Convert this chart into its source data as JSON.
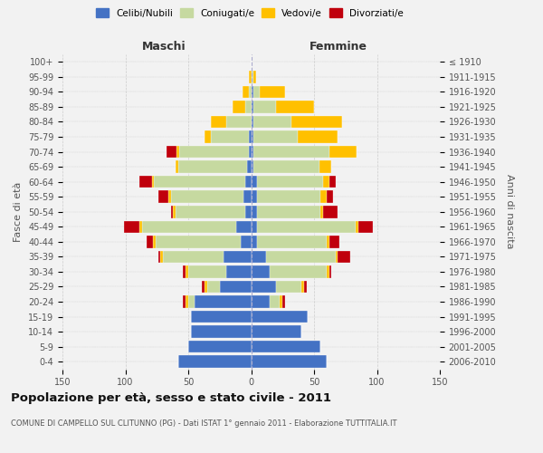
{
  "age_groups": [
    "0-4",
    "5-9",
    "10-14",
    "15-19",
    "20-24",
    "25-29",
    "30-34",
    "35-39",
    "40-44",
    "45-49",
    "50-54",
    "55-59",
    "60-64",
    "65-69",
    "70-74",
    "75-79",
    "80-84",
    "85-89",
    "90-94",
    "95-99",
    "100+"
  ],
  "birth_years": [
    "2006-2010",
    "2001-2005",
    "1996-2000",
    "1991-1995",
    "1986-1990",
    "1981-1985",
    "1976-1980",
    "1971-1975",
    "1966-1970",
    "1961-1965",
    "1956-1960",
    "1951-1955",
    "1946-1950",
    "1941-1945",
    "1936-1940",
    "1931-1935",
    "1926-1930",
    "1921-1925",
    "1916-1920",
    "1911-1915",
    "≤ 1910"
  ],
  "colors": {
    "single": "#4472C4",
    "married": "#C6D9A0",
    "widowed": "#FFC000",
    "divorced": "#C0000C"
  },
  "males": {
    "single": [
      58,
      50,
      48,
      48,
      45,
      25,
      20,
      22,
      8,
      12,
      5,
      6,
      5,
      3,
      2,
      2,
      0,
      0,
      0,
      0,
      0
    ],
    "married": [
      0,
      0,
      0,
      0,
      5,
      10,
      30,
      48,
      68,
      75,
      55,
      58,
      72,
      55,
      55,
      30,
      20,
      5,
      2,
      0,
      0
    ],
    "widowed": [
      0,
      0,
      0,
      0,
      2,
      2,
      2,
      2,
      2,
      2,
      2,
      2,
      2,
      2,
      2,
      5,
      12,
      10,
      5,
      2,
      0
    ],
    "divorced": [
      0,
      0,
      0,
      0,
      2,
      2,
      2,
      2,
      5,
      12,
      2,
      8,
      10,
      0,
      8,
      0,
      0,
      0,
      0,
      0,
      0
    ]
  },
  "females": {
    "single": [
      60,
      55,
      40,
      45,
      15,
      20,
      15,
      12,
      5,
      5,
      5,
      5,
      5,
      2,
      2,
      2,
      2,
      2,
      2,
      0,
      0
    ],
    "married": [
      0,
      0,
      0,
      0,
      8,
      20,
      45,
      55,
      55,
      78,
      50,
      50,
      52,
      52,
      60,
      35,
      30,
      18,
      5,
      2,
      0
    ],
    "widowed": [
      0,
      0,
      0,
      0,
      2,
      2,
      2,
      2,
      2,
      2,
      2,
      5,
      5,
      10,
      22,
      32,
      40,
      30,
      20,
      2,
      0
    ],
    "divorced": [
      0,
      0,
      0,
      0,
      2,
      2,
      2,
      10,
      8,
      12,
      12,
      5,
      5,
      0,
      0,
      0,
      0,
      0,
      0,
      0,
      0
    ]
  },
  "xlim": 150,
  "title": "Popolazione per età, sesso e stato civile - 2011",
  "subtitle": "COMUNE DI CAMPELLO SUL CLITUNNO (PG) - Dati ISTAT 1° gennaio 2011 - Elaborazione TUTTITALIA.IT",
  "ylabel_left": "Fasce di età",
  "ylabel_right": "Anni di nascita",
  "xlabel_left": "Maschi",
  "xlabel_right": "Femmine",
  "legend_labels": [
    "Celibi/Nubili",
    "Coniugati/e",
    "Vedovi/e",
    "Divorziati/e"
  ],
  "bg_color": "#f2f2f2",
  "grid_color": "#cccccc"
}
